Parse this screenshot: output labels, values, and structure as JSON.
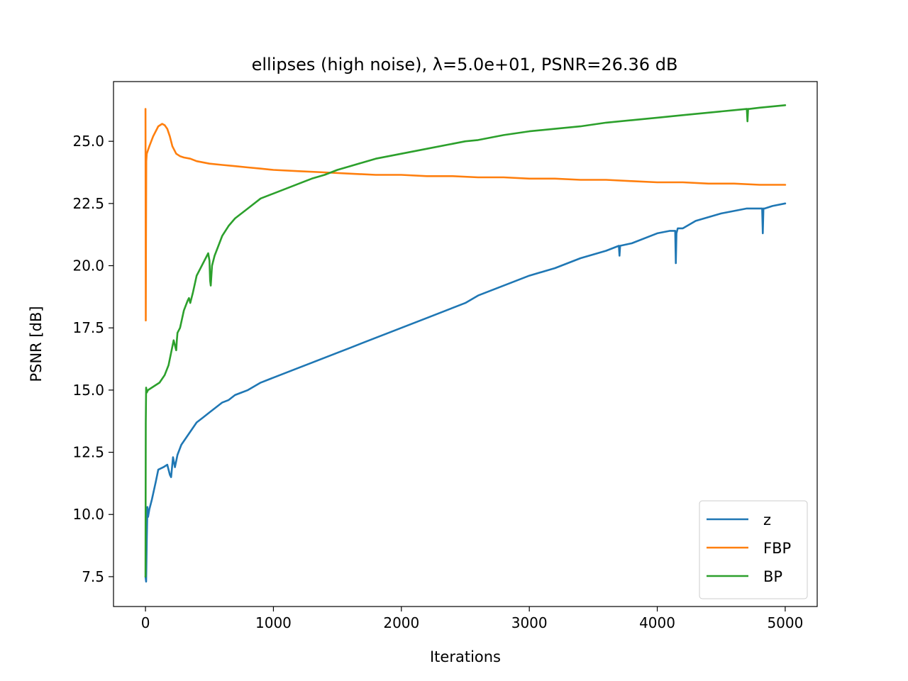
{
  "chart_data": {
    "type": "line",
    "title": "ellipses (high noise), λ=5.0e+01, PSNR=26.36 dB",
    "xlabel": "Iterations",
    "ylabel": "PSNR [dB]",
    "xlim": [
      -250,
      5250
    ],
    "ylim": [
      6.3,
      27.4
    ],
    "xticks": [
      0,
      1000,
      2000,
      3000,
      4000,
      5000
    ],
    "xtick_labels": [
      "0",
      "1000",
      "2000",
      "3000",
      "4000",
      "5000"
    ],
    "yticks": [
      7.5,
      10.0,
      12.5,
      15.0,
      17.5,
      20.0,
      22.5,
      25.0
    ],
    "ytick_labels": [
      "7.5",
      "10.0",
      "12.5",
      "15.0",
      "17.5",
      "20.0",
      "22.5",
      "25.0"
    ],
    "grid": false,
    "legend_position": "lower-right",
    "series": [
      {
        "name": "z",
        "color": "#1f77b4",
        "x": [
          0,
          5,
          10,
          15,
          20,
          30,
          50,
          80,
          100,
          140,
          170,
          190,
          200,
          215,
          230,
          250,
          280,
          320,
          360,
          400,
          450,
          500,
          550,
          600,
          650,
          700,
          750,
          800,
          900,
          1000,
          1100,
          1200,
          1300,
          1400,
          1500,
          1600,
          1700,
          1800,
          1900,
          2000,
          2200,
          2400,
          2500,
          2600,
          2800,
          3000,
          3200,
          3400,
          3600,
          3700,
          3705,
          3710,
          3800,
          4000,
          4100,
          4140,
          4145,
          4150,
          4160,
          4200,
          4300,
          4500,
          4600,
          4700,
          4800,
          4820,
          4825,
          4830,
          4840,
          4900,
          5000
        ],
        "y": [
          7.5,
          7.3,
          9.0,
          10.3,
          9.9,
          10.2,
          10.6,
          11.3,
          11.8,
          11.9,
          12.0,
          11.6,
          11.5,
          12.3,
          11.9,
          12.4,
          12.8,
          13.1,
          13.4,
          13.7,
          13.9,
          14.1,
          14.3,
          14.5,
          14.6,
          14.8,
          14.9,
          15.0,
          15.3,
          15.5,
          15.7,
          15.9,
          16.1,
          16.3,
          16.5,
          16.7,
          16.9,
          17.1,
          17.3,
          17.5,
          17.9,
          18.3,
          18.5,
          18.8,
          19.2,
          19.6,
          19.9,
          20.3,
          20.6,
          20.8,
          20.4,
          20.8,
          20.9,
          21.3,
          21.4,
          21.4,
          20.1,
          21.3,
          21.5,
          21.5,
          21.8,
          22.1,
          22.2,
          22.3,
          22.3,
          22.3,
          21.3,
          22.3,
          22.3,
          22.4,
          22.5
        ]
      },
      {
        "name": "FBP",
        "color": "#ff7f0e",
        "x": [
          0,
          2,
          4,
          6,
          10,
          30,
          60,
          100,
          130,
          150,
          170,
          190,
          210,
          240,
          270,
          300,
          350,
          400,
          500,
          600,
          700,
          800,
          900,
          1000,
          1200,
          1400,
          1600,
          1800,
          2000,
          2200,
          2400,
          2600,
          2800,
          3000,
          3200,
          3400,
          3600,
          3800,
          4000,
          4200,
          4400,
          4600,
          4800,
          5000
        ],
        "y": [
          26.3,
          17.8,
          21.0,
          24.2,
          24.5,
          24.8,
          25.2,
          25.6,
          25.7,
          25.65,
          25.5,
          25.2,
          24.8,
          24.5,
          24.4,
          24.35,
          24.3,
          24.2,
          24.1,
          24.05,
          24.0,
          23.95,
          23.9,
          23.85,
          23.8,
          23.75,
          23.7,
          23.65,
          23.65,
          23.6,
          23.6,
          23.55,
          23.55,
          23.5,
          23.5,
          23.45,
          23.45,
          23.4,
          23.35,
          23.35,
          23.3,
          23.3,
          23.25,
          23.25
        ]
      },
      {
        "name": "BP",
        "color": "#2ca02c",
        "x": [
          0,
          2,
          5,
          10,
          20,
          50,
          80,
          110,
          150,
          180,
          200,
          220,
          240,
          245,
          250,
          270,
          300,
          330,
          340,
          350,
          370,
          400,
          450,
          490,
          500,
          505,
          510,
          520,
          540,
          570,
          600,
          650,
          700,
          800,
          900,
          1000,
          1100,
          1200,
          1300,
          1400,
          1500,
          1600,
          1700,
          1800,
          1900,
          2000,
          2200,
          2400,
          2500,
          2600,
          2800,
          3000,
          3200,
          3400,
          3600,
          3800,
          4000,
          4200,
          4400,
          4600,
          4700,
          4705,
          4710,
          4720,
          4800,
          4900,
          5000
        ],
        "y": [
          7.5,
          13.7,
          15.1,
          14.9,
          15.0,
          15.1,
          15.2,
          15.3,
          15.6,
          16.0,
          16.5,
          17.0,
          16.6,
          17.0,
          17.3,
          17.5,
          18.2,
          18.6,
          18.7,
          18.5,
          18.9,
          19.6,
          20.1,
          20.5,
          20.2,
          19.4,
          19.2,
          20.0,
          20.4,
          20.8,
          21.2,
          21.6,
          21.9,
          22.3,
          22.7,
          22.9,
          23.1,
          23.3,
          23.5,
          23.65,
          23.85,
          24.0,
          24.15,
          24.3,
          24.4,
          24.5,
          24.7,
          24.9,
          25.0,
          25.05,
          25.25,
          25.4,
          25.5,
          25.6,
          25.75,
          25.85,
          25.95,
          26.05,
          26.15,
          26.25,
          26.3,
          25.8,
          26.3,
          26.3,
          26.35,
          26.4,
          26.45
        ]
      }
    ]
  }
}
